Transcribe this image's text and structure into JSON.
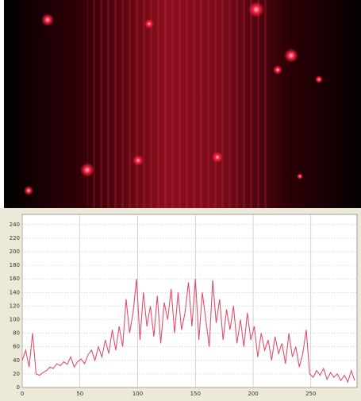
{
  "chart_data": {
    "type": "line",
    "x": [
      0,
      3,
      6,
      9,
      12,
      15,
      18,
      21,
      24,
      27,
      30,
      33,
      36,
      39,
      42,
      45,
      48,
      51,
      54,
      57,
      60,
      63,
      66,
      69,
      72,
      75,
      78,
      81,
      84,
      87,
      90,
      93,
      96,
      99,
      102,
      105,
      108,
      111,
      114,
      117,
      120,
      123,
      126,
      129,
      132,
      135,
      138,
      141,
      144,
      147,
      150,
      153,
      156,
      159,
      162,
      165,
      168,
      171,
      174,
      177,
      180,
      183,
      186,
      189,
      192,
      195,
      198,
      201,
      204,
      207,
      210,
      213,
      216,
      219,
      222,
      225,
      228,
      231,
      234,
      237,
      240,
      243,
      246,
      249,
      252,
      255,
      258,
      261,
      264,
      267,
      270,
      273,
      276,
      279,
      282,
      285,
      288
    ],
    "values": [
      40,
      55,
      30,
      80,
      20,
      18,
      22,
      25,
      30,
      28,
      35,
      32,
      38,
      34,
      45,
      30,
      38,
      42,
      35,
      48,
      55,
      40,
      60,
      45,
      70,
      50,
      85,
      55,
      90,
      60,
      130,
      80,
      110,
      160,
      70,
      140,
      90,
      120,
      75,
      135,
      65,
      125,
      100,
      145,
      80,
      140,
      85,
      110,
      155,
      90,
      160,
      70,
      140,
      100,
      60,
      158,
      95,
      130,
      70,
      115,
      85,
      120,
      65,
      100,
      60,
      110,
      70,
      90,
      45,
      80,
      55,
      70,
      40,
      75,
      50,
      65,
      35,
      80,
      45,
      60,
      30,
      50,
      85,
      20,
      15,
      25,
      18,
      28,
      12,
      22,
      15,
      20,
      10,
      18,
      8,
      25,
      10
    ],
    "color": "#e0506a",
    "xlim": [
      0,
      290
    ],
    "ylim": [
      0,
      255
    ],
    "xticks": [
      0,
      50,
      100,
      150,
      200,
      250
    ],
    "yticks": [
      0,
      20,
      40,
      60,
      80,
      100,
      120,
      140,
      160,
      180,
      200,
      220,
      240
    ],
    "grid": true
  }
}
